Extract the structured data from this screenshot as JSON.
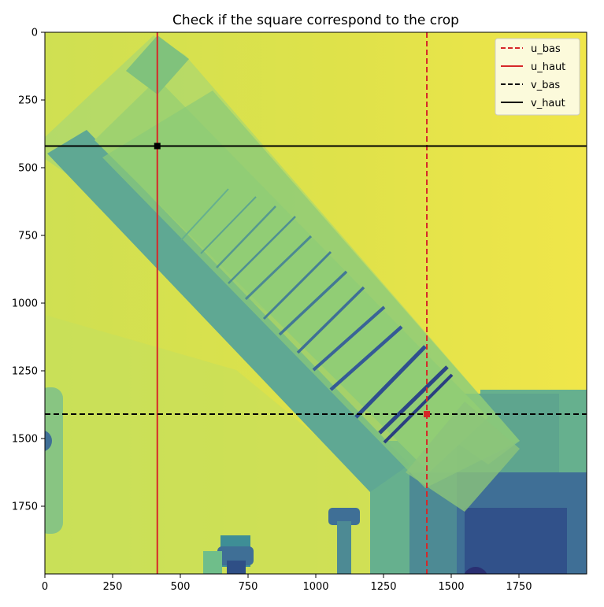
{
  "chart_data": {
    "type": "image",
    "title": "Check if the square correspond to the crop",
    "xlim": [
      0,
      2000
    ],
    "ylim": [
      2000,
      0
    ],
    "y_inverted": true,
    "xticks": [
      0,
      250,
      500,
      750,
      1000,
      1250,
      1500,
      1750
    ],
    "yticks": [
      0,
      250,
      500,
      750,
      1000,
      1250,
      1500,
      1750
    ],
    "xtick_labels": [
      "0",
      "250",
      "500",
      "750",
      "1000",
      "1250",
      "1500",
      "1750"
    ],
    "ytick_labels": [
      "0",
      "250",
      "500",
      "750",
      "1000",
      "1250",
      "1500",
      "1750"
    ],
    "colormap": "viridis",
    "lines": [
      {
        "name": "u_bas",
        "orientation": "vertical",
        "value": 1410,
        "color": "#d62728",
        "style": "dashed"
      },
      {
        "name": "u_haut",
        "orientation": "vertical",
        "value": 415,
        "color": "#d62728",
        "style": "solid"
      },
      {
        "name": "v_bas",
        "orientation": "horizontal",
        "value": 1410,
        "color": "#000000",
        "style": "dashed"
      },
      {
        "name": "v_haut",
        "orientation": "horizontal",
        "value": 420,
        "color": "#000000",
        "style": "solid"
      }
    ],
    "markers": [
      {
        "x": 415,
        "y": 420,
        "color": "#000000"
      },
      {
        "x": 1410,
        "y": 1410,
        "color": "#d62728"
      }
    ],
    "legend": {
      "placement": "top-right",
      "entries": [
        "u_bas",
        "u_haut",
        "v_bas",
        "v_haut"
      ]
    }
  }
}
